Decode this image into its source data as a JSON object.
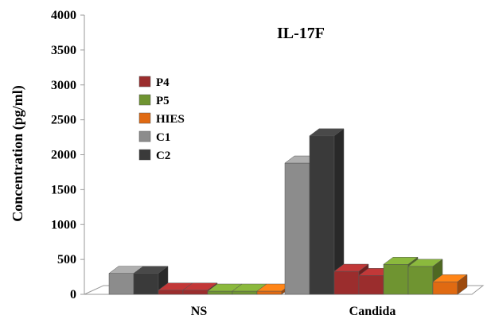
{
  "chart_data": {
    "type": "bar",
    "title": "IL-17F",
    "xlabel": "",
    "ylabel": "Concentration (pg/ml)",
    "ylim": [
      0,
      4000
    ],
    "yticks": [
      "0",
      "500",
      "1000",
      "1500",
      "2000",
      "2500",
      "3000",
      "3500",
      "4000"
    ],
    "categories": [
      "NS",
      "Candida"
    ],
    "legend_position": "left, upper-middle",
    "grid": false,
    "style": "3d",
    "series": [
      {
        "name": "C1",
        "color": "#8c8c8c",
        "values": [
          300,
          null
        ]
      },
      {
        "name": "C2",
        "color": "#3a3a3a",
        "values": [
          300,
          null
        ]
      },
      {
        "name": "P4",
        "color": "#9b2d2d",
        "values": [
          60,
          330
        ]
      },
      {
        "name": "P4",
        "color": "#9b2d2d",
        "values": [
          60,
          270
        ]
      },
      {
        "name": "P5",
        "color": "#6f9431",
        "values": [
          20,
          430
        ]
      },
      {
        "name": "P5",
        "color": "#6f9431",
        "values": [
          20,
          400
        ]
      },
      {
        "name": "HIES",
        "color": "#e06a12",
        "values": [
          20,
          180
        ]
      }
    ],
    "candida_controls": [
      {
        "name": "C1",
        "color": "#8c8c8c",
        "value": 1880
      },
      {
        "name": "C2",
        "color": "#3a3a3a",
        "value": 2270
      }
    ],
    "legend": [
      {
        "label": "P4",
        "color": "#9b2d2d"
      },
      {
        "label": "P5",
        "color": "#6f9431"
      },
      {
        "label": "HIES",
        "color": "#e06a12"
      },
      {
        "label": "C1",
        "color": "#8c8c8c"
      },
      {
        "label": "C2",
        "color": "#3a3a3a"
      }
    ]
  }
}
